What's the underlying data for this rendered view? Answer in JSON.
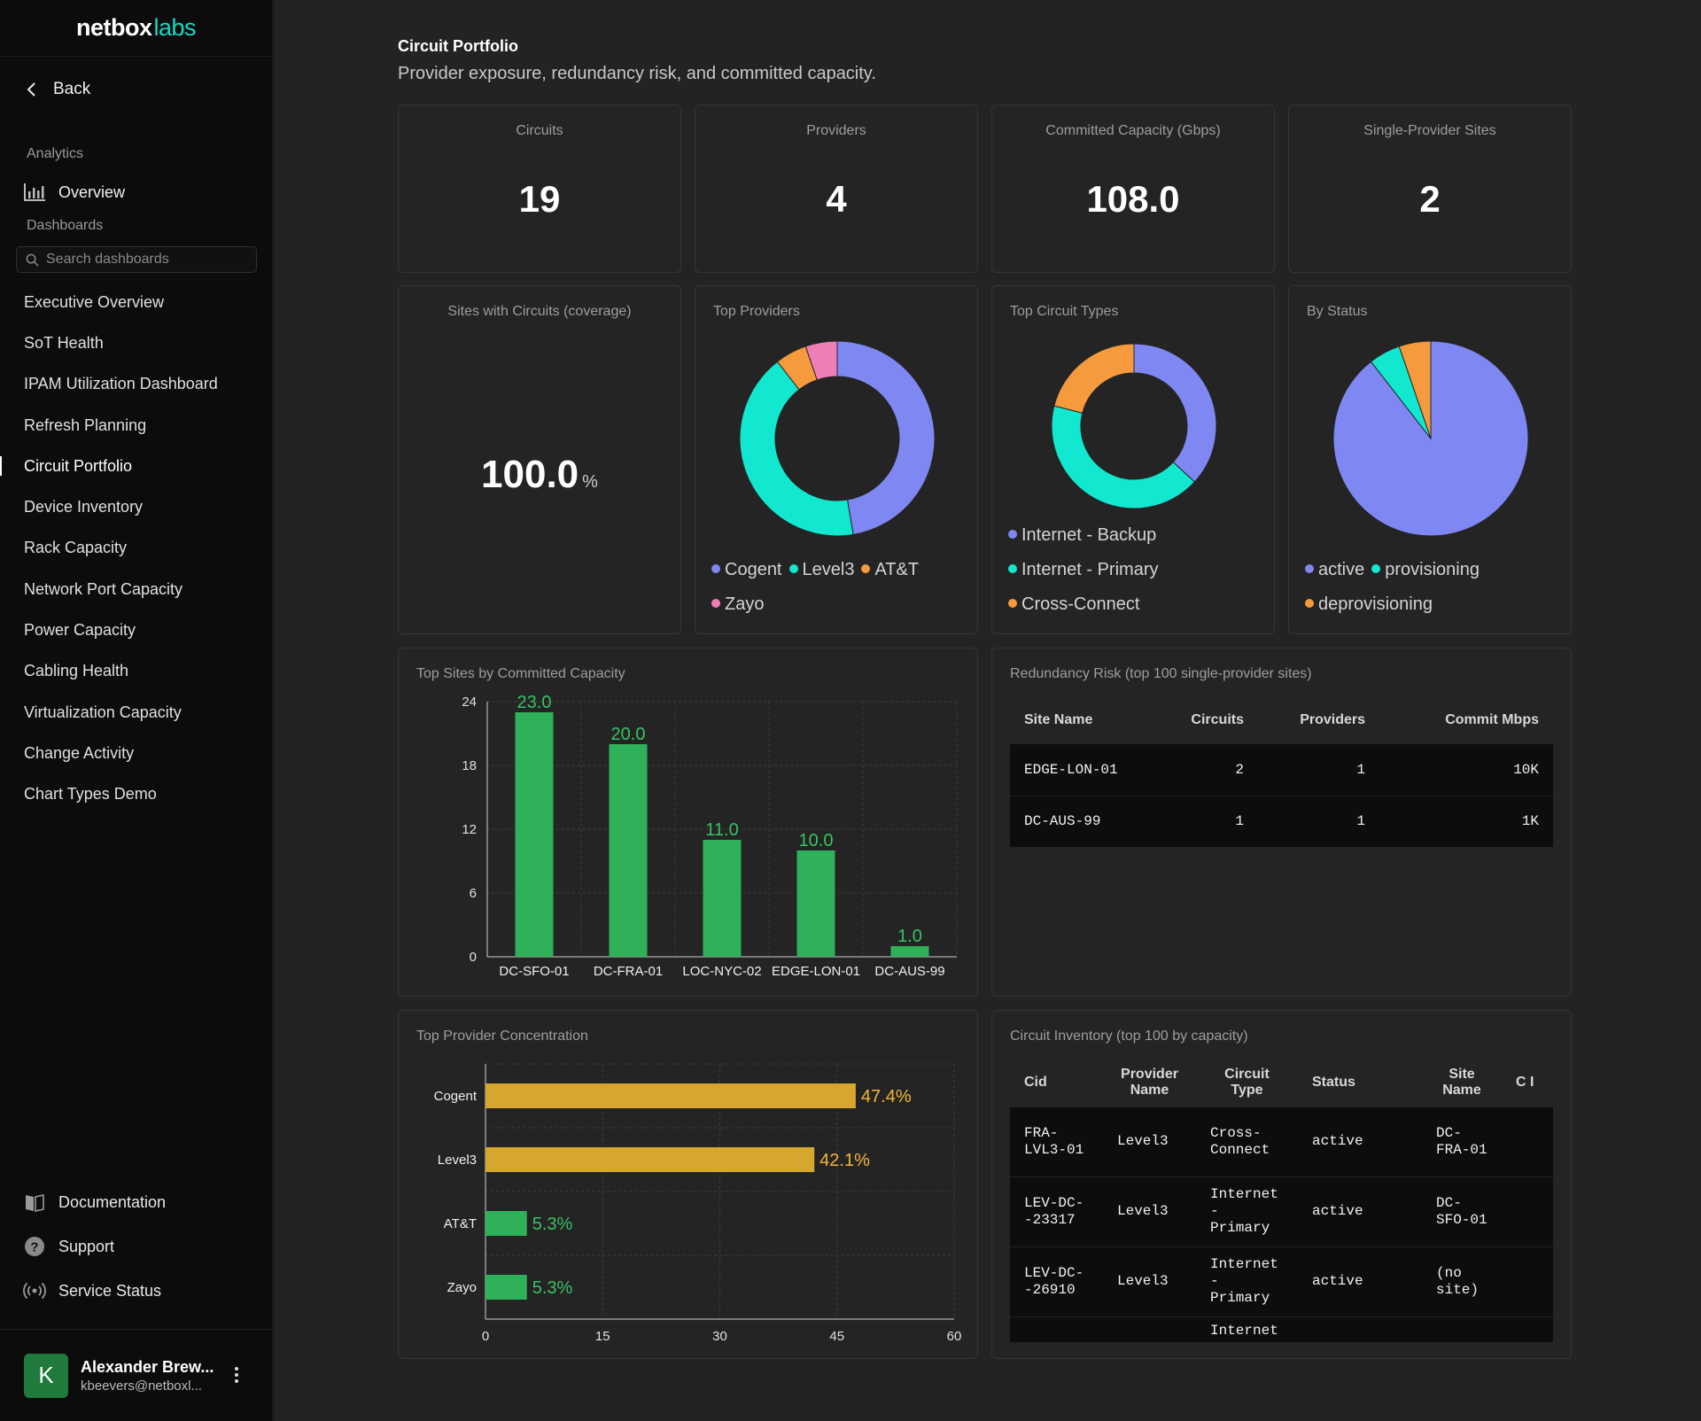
{
  "brand": {
    "part1": "netbox",
    "part2": "labs"
  },
  "sidebar": {
    "back_label": "Back",
    "analytics_label": "Analytics",
    "overview_label": "Overview",
    "dashboards_label": "Dashboards",
    "search_placeholder": "Search dashboards",
    "items": [
      {
        "label": "Executive Overview"
      },
      {
        "label": "SoT Health"
      },
      {
        "label": "IPAM Utilization Dashboard"
      },
      {
        "label": "Refresh Planning"
      },
      {
        "label": "Circuit Portfolio",
        "active": true
      },
      {
        "label": "Device Inventory"
      },
      {
        "label": "Rack Capacity"
      },
      {
        "label": "Network Port Capacity"
      },
      {
        "label": "Power Capacity"
      },
      {
        "label": "Cabling Health"
      },
      {
        "label": "Virtualization Capacity"
      },
      {
        "label": "Change Activity"
      },
      {
        "label": "Chart Types Demo"
      }
    ],
    "footer": {
      "documentation": "Documentation",
      "support": "Support",
      "service_status": "Service Status"
    },
    "user": {
      "initial": "K",
      "name": "Alexander Brew...",
      "email": "kbeevers@netboxl..."
    }
  },
  "page": {
    "title": "Circuit Portfolio",
    "subtitle": "Provider exposure, redundancy risk, and committed capacity."
  },
  "kpis": [
    {
      "label": "Circuits",
      "value": "19"
    },
    {
      "label": "Providers",
      "value": "4"
    },
    {
      "label": "Committed Capacity (Gbps)",
      "value": "108.0"
    },
    {
      "label": "Single-Provider Sites",
      "value": "2"
    }
  ],
  "coverage": {
    "label": "Sites with Circuits (coverage)",
    "value": "100.0",
    "unit": "%"
  },
  "colors": {
    "blue": "#7f87f2",
    "teal": "#12e8d0",
    "orange": "#f59b3d",
    "pink": "#f07eb6",
    "green": "#2fb15a",
    "gold": "#d6a62e"
  },
  "chart_data": [
    {
      "type": "pie",
      "title": "Top Providers",
      "variant": "donut",
      "categories": [
        "Cogent",
        "Level3",
        "AT&T",
        "Zayo"
      ],
      "values": [
        9,
        8,
        1,
        1
      ],
      "colors": [
        "#7f87f2",
        "#12e8d0",
        "#f59b3d",
        "#f07eb6"
      ]
    },
    {
      "type": "pie",
      "title": "Top Circuit Types",
      "variant": "donut",
      "categories": [
        "Internet - Backup",
        "Internet - Primary",
        "Cross-Connect"
      ],
      "values": [
        7,
        8,
        4
      ],
      "colors": [
        "#7f87f2",
        "#12e8d0",
        "#f59b3d"
      ]
    },
    {
      "type": "pie",
      "title": "By Status",
      "variant": "pie",
      "categories": [
        "active",
        "provisioning",
        "deprovisioning"
      ],
      "values": [
        17,
        1,
        1
      ],
      "colors": [
        "#7f87f2",
        "#12e8d0",
        "#f59b3d"
      ]
    },
    {
      "type": "bar",
      "title": "Top Sites by Committed Capacity",
      "categories": [
        "DC-SFO-01",
        "DC-FRA-01",
        "LOC-NYC-02",
        "EDGE-LON-01",
        "DC-AUS-99"
      ],
      "values": [
        23.0,
        20.0,
        11.0,
        10.0,
        1.0
      ],
      "value_labels": [
        "23.0",
        "20.0",
        "11.0",
        "10.0",
        "1.0"
      ],
      "ylim": [
        0,
        24
      ],
      "yticks": [
        "0",
        "6",
        "12",
        "18",
        "24"
      ],
      "grid": true,
      "color": "#2fb15a"
    },
    {
      "type": "bar",
      "orientation": "horizontal",
      "title": "Top Provider Concentration",
      "categories": [
        "Cogent",
        "Level3",
        "AT&T",
        "Zayo"
      ],
      "values": [
        47.4,
        42.1,
        5.3,
        5.3
      ],
      "value_labels": [
        "47.4%",
        "42.1%",
        "5.3%",
        "5.3%"
      ],
      "bar_colors": [
        "#d6a62e",
        "#d6a62e",
        "#2fb15a",
        "#2fb15a"
      ],
      "label_colors": [
        "#f0b738",
        "#f0b738",
        "#34c463",
        "#34c463"
      ],
      "xlim": [
        0,
        60
      ],
      "xticks": [
        "0",
        "15",
        "30",
        "45",
        "60"
      ],
      "grid": true
    }
  ],
  "risk_table": {
    "title": "Redundancy Risk (top 100 single-provider sites)",
    "columns": [
      "Site Name",
      "Circuits",
      "Providers",
      "Commit Mbps"
    ],
    "rows": [
      [
        "EDGE-LON-01",
        "2",
        "1",
        "10K"
      ],
      [
        "DC-AUS-99",
        "1",
        "1",
        "1K"
      ]
    ]
  },
  "inventory_table": {
    "title": "Circuit Inventory (top 100 by capacity)",
    "columns": [
      "Cid",
      "Provider Name",
      "Circuit Type",
      "Status",
      "Site Name",
      "C I"
    ],
    "rows": [
      [
        "FRA-LVL3-01",
        "Level3",
        "Cross-Connect",
        "active",
        "DC-FRA-01"
      ],
      [
        "LEV-DC--23317",
        "Level3",
        "Internet - Primary",
        "active",
        "DC-SFO-01"
      ],
      [
        "LEV-DC--26910",
        "Level3",
        "Internet - Primary",
        "active",
        "(no site)"
      ],
      [
        "",
        "",
        "Internet",
        "",
        ""
      ]
    ]
  }
}
